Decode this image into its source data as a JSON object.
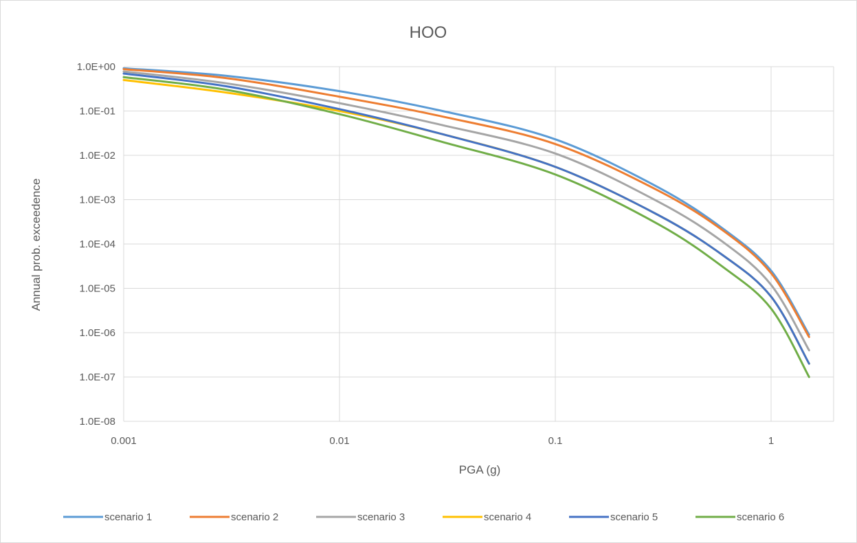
{
  "chart_data": {
    "type": "line",
    "title": "HOO",
    "xlabel": "PGA (g)",
    "ylabel": "Annual prob. exceedence",
    "x_scale": "log",
    "y_scale": "log",
    "xlim": [
      0.001,
      2
    ],
    "ylim": [
      1e-08,
      1
    ],
    "x_ticks": [
      0.001,
      0.01,
      0.1,
      1
    ],
    "x_tick_labels": [
      "0.001",
      "0.01",
      "0.1",
      "1"
    ],
    "y_ticks": [
      1,
      0.1,
      0.01,
      0.001,
      0.0001,
      1e-05,
      1e-06,
      1e-07,
      1e-08
    ],
    "y_tick_labels": [
      "1.0E+00",
      "1.0E-01",
      "1.0E-02",
      "1.0E-03",
      "1.0E-04",
      "1.0E-05",
      "1.0E-06",
      "1.0E-07",
      "1.0E-08"
    ],
    "grid": true,
    "legend_position": "bottom",
    "x": [
      0.001,
      0.003,
      0.01,
      0.03,
      0.1,
      0.3,
      0.6,
      1.0,
      1.5
    ],
    "series": [
      {
        "name": "scenario 1",
        "color": "#5b9bd5",
        "values": [
          0.92,
          0.62,
          0.28,
          0.1,
          0.023,
          0.0019,
          0.00022,
          2.5e-05,
          9e-07
        ]
      },
      {
        "name": "scenario 2",
        "color": "#ed7d31",
        "values": [
          0.88,
          0.55,
          0.21,
          0.075,
          0.018,
          0.0016,
          0.0002,
          2.2e-05,
          8e-07
        ]
      },
      {
        "name": "scenario 3",
        "color": "#a5a5a5",
        "values": [
          0.78,
          0.42,
          0.15,
          0.048,
          0.011,
          0.0009,
          0.00011,
          1.2e-05,
          4e-07
        ]
      },
      {
        "name": "scenario 4",
        "color": "#ffc000",
        "values": [
          0.5,
          0.26,
          0.1,
          0.03,
          0.0055,
          0.00045,
          5.5e-05,
          6.5e-06,
          2e-07
        ]
      },
      {
        "name": "scenario 5",
        "color": "#4472c4",
        "values": [
          0.7,
          0.36,
          0.11,
          0.03,
          0.0055,
          0.00045,
          5.5e-05,
          6.5e-06,
          2e-07
        ]
      },
      {
        "name": "scenario 6",
        "color": "#70ad47",
        "values": [
          0.58,
          0.3,
          0.085,
          0.02,
          0.0037,
          0.00028,
          3e-05,
          3.5e-06,
          1e-07
        ]
      }
    ]
  }
}
